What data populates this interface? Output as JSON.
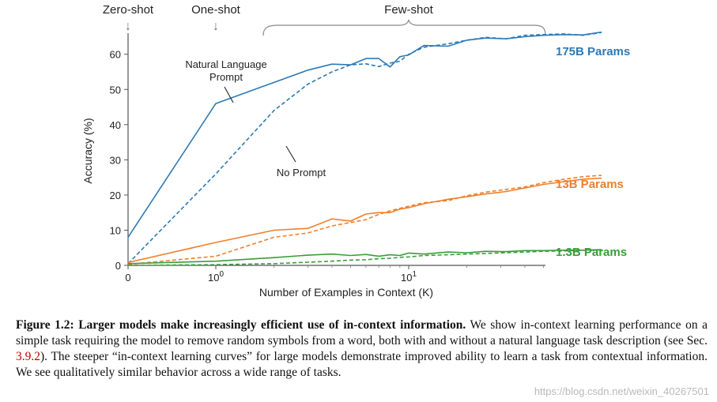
{
  "figure": {
    "phase_labels": {
      "zero_shot": "Zero-shot",
      "one_shot": "One-shot",
      "few_shot": "Few-shot"
    },
    "arrow_glyph": "↓",
    "annotations": {
      "natural_prompt_line1": "Natural Language",
      "natural_prompt_line2": "Prompt",
      "no_prompt": "No Prompt"
    },
    "series_labels": {
      "large": "175B Params",
      "medium": "13B Params",
      "small": "1.3B Params"
    },
    "colors": {
      "large": "#2e7ab5",
      "medium": "#f07f2a",
      "small": "#3b9d3b",
      "axis": "#555555",
      "text": "#222222"
    }
  },
  "chart_data": {
    "type": "line",
    "title": "",
    "xlabel": "Number of Examples in Context  (K)",
    "ylabel": "Accuracy (%)",
    "xscale": "symlog",
    "xlim": [
      0,
      100
    ],
    "ylim": [
      0,
      66
    ],
    "x_ticks": [
      {
        "value": 0,
        "base": "0",
        "exp": ""
      },
      {
        "value": 1,
        "base": "10",
        "exp": "0"
      },
      {
        "value": 10,
        "base": "10",
        "exp": "1"
      }
    ],
    "y_ticks": [
      0,
      10,
      20,
      30,
      40,
      50,
      60
    ],
    "series": [
      {
        "name": "175B Params - Natural Language Prompt",
        "color": "#2e7ab5",
        "dash": "solid",
        "x": [
          0,
          1,
          2,
          3,
          4,
          5,
          6,
          7,
          8,
          9,
          10,
          12,
          16,
          20,
          25,
          32,
          40,
          50,
          64,
          80,
          100
        ],
        "y": [
          8,
          46,
          52,
          55.5,
          57.2,
          57,
          58.8,
          58.8,
          56.4,
          59.3,
          59.8,
          62.5,
          62.3,
          64,
          64.6,
          64.4,
          65,
          65.4,
          65.6,
          65.5,
          66.3
        ]
      },
      {
        "name": "175B Params - No Prompt",
        "color": "#2e7ab5",
        "dash": "dashed",
        "x": [
          0,
          1,
          2,
          3,
          4,
          5,
          6,
          7,
          8,
          9,
          10,
          12,
          16,
          20,
          25,
          32,
          40,
          50,
          64,
          80,
          100
        ],
        "y": [
          0.5,
          26,
          44,
          51.5,
          55,
          57,
          57.3,
          56.5,
          57.5,
          58,
          60,
          62,
          63,
          64,
          64.8,
          64.4,
          65.4,
          65.6,
          65.8,
          65.4,
          66.2
        ]
      },
      {
        "name": "13B Params - Natural Language Prompt",
        "color": "#f07f2a",
        "dash": "solid",
        "x": [
          0,
          1,
          2,
          3,
          4,
          5,
          6,
          7,
          8,
          9,
          10,
          12,
          16,
          20,
          25,
          32,
          40,
          50,
          64,
          80,
          100
        ],
        "y": [
          0.8,
          6.5,
          10,
          10.5,
          13.2,
          12.6,
          14.6,
          15,
          15,
          16,
          16.4,
          17.5,
          18.8,
          19.5,
          20.3,
          21,
          22,
          23,
          23.8,
          24.5,
          24.8
        ]
      },
      {
        "name": "13B Params - No Prompt",
        "color": "#f07f2a",
        "dash": "dashed",
        "x": [
          0,
          1,
          2,
          3,
          4,
          5,
          6,
          7,
          8,
          9,
          10,
          12,
          16,
          20,
          25,
          32,
          40,
          50,
          64,
          80,
          100
        ],
        "y": [
          0.3,
          2.6,
          8,
          9.2,
          11.2,
          12.2,
          13,
          14.5,
          15.5,
          16.2,
          16.8,
          17.8,
          18.4,
          19.8,
          20.8,
          21.6,
          22.3,
          23.5,
          24.5,
          25.2,
          25.6
        ]
      },
      {
        "name": "1.3B Params - Natural Language Prompt",
        "color": "#3b9d3b",
        "dash": "solid",
        "x": [
          0,
          1,
          2,
          3,
          4,
          5,
          6,
          7,
          8,
          9,
          10,
          12,
          16,
          20,
          25,
          32,
          40,
          50,
          64,
          80,
          100
        ],
        "y": [
          0.5,
          1.2,
          2.2,
          2.9,
          3.2,
          2.8,
          3.1,
          2.6,
          3.0,
          2.8,
          3.5,
          3.2,
          3.8,
          3.6,
          4.0,
          3.9,
          4.2,
          4.2,
          4.3,
          4.3,
          4.5
        ]
      },
      {
        "name": "1.3B Params - No Prompt",
        "color": "#3b9d3b",
        "dash": "dashed",
        "x": [
          0,
          1,
          2,
          3,
          4,
          5,
          6,
          7,
          8,
          9,
          10,
          12,
          16,
          20,
          25,
          32,
          40,
          50,
          64,
          80,
          100
        ],
        "y": [
          0,
          0.2,
          0.5,
          0.9,
          1.2,
          1.5,
          1.6,
          1.9,
          2.0,
          2.3,
          2.4,
          2.8,
          3.0,
          3.2,
          3.4,
          3.6,
          3.8,
          4.0,
          4.1,
          4.3,
          4.4
        ]
      }
    ]
  },
  "caption": {
    "lead": "Figure 1.2: Larger models make increasingly efficient use of in-context information.",
    "part1": "We show in-context learning performance on a simple task requiring the model to remove random symbols from a word, both with and without a natural language task description (see Sec.",
    "ref": "3.9.2",
    "part2": "). The steeper “in-context learning curves” for large models demonstrate improved ability to learn a task from contextual information. We see qualitatively similar behavior across a wide range of tasks."
  },
  "watermark": "https://blog.csdn.net/weixin_40267501"
}
